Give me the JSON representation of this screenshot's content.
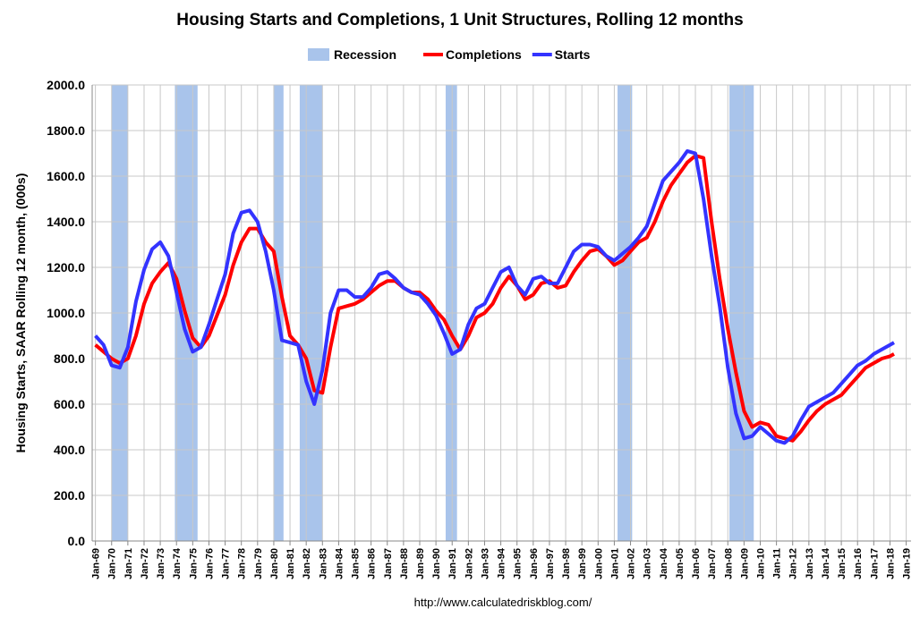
{
  "chart_data": {
    "type": "line",
    "title": "Housing Starts and Completions, 1 Unit Structures, Rolling 12 months",
    "y_label": "Housing Starts, SAAR Rolling 12 month, (000s)",
    "source": "http://www.calculatedriskblog.com/",
    "x": [
      1969,
      1969.5,
      1970,
      1970.5,
      1971,
      1971.5,
      1972,
      1972.5,
      1973,
      1973.5,
      1974,
      1974.5,
      1975,
      1975.5,
      1976,
      1976.5,
      1977,
      1977.5,
      1978,
      1978.5,
      1979,
      1979.5,
      1980,
      1980.5,
      1981,
      1981.5,
      1982,
      1982.5,
      1983,
      1983.5,
      1984,
      1984.5,
      1985,
      1985.5,
      1986,
      1986.5,
      1987,
      1987.5,
      1988,
      1988.5,
      1989,
      1989.5,
      1990,
      1990.5,
      1991,
      1991.5,
      1992,
      1992.5,
      1993,
      1993.5,
      1994,
      1994.5,
      1995,
      1995.5,
      1996,
      1996.5,
      1997,
      1997.5,
      1998,
      1998.5,
      1999,
      1999.5,
      2000,
      2000.5,
      2001,
      2001.5,
      2002,
      2002.5,
      2003,
      2003.5,
      2004,
      2004.5,
      2005,
      2005.5,
      2006,
      2006.5,
      2007,
      2007.5,
      2008,
      2008.5,
      2009,
      2009.5,
      2010,
      2010.5,
      2011,
      2011.5,
      2012,
      2012.5,
      2013,
      2013.5,
      2014,
      2014.5,
      2015,
      2015.5,
      2016,
      2016.5,
      2017,
      2017.5,
      2018,
      2018.25
    ],
    "series": [
      {
        "name": "Completions",
        "color": "#ff0000",
        "values": [
          860,
          830,
          800,
          780,
          800,
          900,
          1040,
          1130,
          1180,
          1220,
          1150,
          1010,
          890,
          850,
          900,
          990,
          1080,
          1210,
          1310,
          1370,
          1370,
          1310,
          1270,
          1070,
          900,
          860,
          800,
          660,
          650,
          850,
          1020,
          1030,
          1040,
          1060,
          1090,
          1120,
          1140,
          1140,
          1110,
          1090,
          1090,
          1060,
          1010,
          970,
          900,
          840,
          900,
          980,
          1000,
          1040,
          1110,
          1160,
          1120,
          1060,
          1080,
          1130,
          1140,
          1110,
          1120,
          1180,
          1230,
          1270,
          1280,
          1250,
          1210,
          1230,
          1270,
          1310,
          1330,
          1400,
          1490,
          1560,
          1610,
          1660,
          1690,
          1680,
          1400,
          1150,
          930,
          740,
          570,
          500,
          520,
          510,
          460,
          450,
          440,
          480,
          530,
          570,
          600,
          620,
          640,
          680,
          720,
          760,
          780,
          800,
          810,
          820
        ]
      },
      {
        "name": "Starts",
        "color": "#3333ff",
        "values": [
          900,
          860,
          770,
          760,
          850,
          1050,
          1190,
          1280,
          1310,
          1250,
          1090,
          930,
          830,
          850,
          950,
          1060,
          1170,
          1350,
          1440,
          1450,
          1400,
          1270,
          1100,
          880,
          870,
          860,
          700,
          600,
          750,
          1000,
          1100,
          1100,
          1070,
          1070,
          1110,
          1170,
          1180,
          1150,
          1110,
          1090,
          1080,
          1040,
          990,
          910,
          820,
          840,
          950,
          1020,
          1040,
          1110,
          1180,
          1200,
          1120,
          1080,
          1150,
          1160,
          1130,
          1130,
          1200,
          1270,
          1300,
          1300,
          1290,
          1250,
          1230,
          1260,
          1290,
          1330,
          1380,
          1480,
          1580,
          1620,
          1660,
          1710,
          1700,
          1500,
          1250,
          1030,
          760,
          560,
          450,
          460,
          500,
          470,
          440,
          430,
          460,
          530,
          590,
          610,
          630,
          650,
          690,
          730,
          770,
          790,
          820,
          840,
          860,
          870
        ]
      }
    ],
    "recessions": {
      "name": "Recession",
      "color": "#a9c4eb",
      "periods": [
        [
          1970.0,
          1971.0
        ],
        [
          1973.9,
          1975.3
        ],
        [
          1980.0,
          1980.6
        ],
        [
          1981.6,
          1983.0
        ],
        [
          1990.6,
          1991.3
        ],
        [
          2001.2,
          2002.1
        ],
        [
          2008.1,
          2009.6
        ]
      ]
    },
    "xlim": [
      1968.8,
      2019.3
    ],
    "xticks": [
      {
        "value": 1969,
        "label": "Jan-69"
      },
      {
        "value": 1970,
        "label": "Jan-70"
      },
      {
        "value": 1971,
        "label": "Jan-71"
      },
      {
        "value": 1972,
        "label": "Jan-72"
      },
      {
        "value": 1973,
        "label": "Jan-73"
      },
      {
        "value": 1974,
        "label": "Jan-74"
      },
      {
        "value": 1975,
        "label": "Jan-75"
      },
      {
        "value": 1976,
        "label": "Jan-76"
      },
      {
        "value": 1977,
        "label": "Jan-77"
      },
      {
        "value": 1978,
        "label": "Jan-78"
      },
      {
        "value": 1979,
        "label": "Jan-79"
      },
      {
        "value": 1980,
        "label": "Jan-80"
      },
      {
        "value": 1981,
        "label": "Jan-81"
      },
      {
        "value": 1982,
        "label": "Jan-82"
      },
      {
        "value": 1983,
        "label": "Jan-83"
      },
      {
        "value": 1984,
        "label": "Jan-84"
      },
      {
        "value": 1985,
        "label": "Jan-85"
      },
      {
        "value": 1986,
        "label": "Jan-86"
      },
      {
        "value": 1987,
        "label": "Jan-87"
      },
      {
        "value": 1988,
        "label": "Jan-88"
      },
      {
        "value": 1989,
        "label": "Jan-89"
      },
      {
        "value": 1990,
        "label": "Jan-90"
      },
      {
        "value": 1991,
        "label": "Jan-91"
      },
      {
        "value": 1992,
        "label": "Jan-92"
      },
      {
        "value": 1993,
        "label": "Jan-93"
      },
      {
        "value": 1994,
        "label": "Jan-94"
      },
      {
        "value": 1995,
        "label": "Jan-95"
      },
      {
        "value": 1996,
        "label": "Jan-96"
      },
      {
        "value": 1997,
        "label": "Jan-97"
      },
      {
        "value": 1998,
        "label": "Jan-98"
      },
      {
        "value": 1999,
        "label": "Jan-99"
      },
      {
        "value": 2000,
        "label": "Jan-00"
      },
      {
        "value": 2001,
        "label": "Jan-01"
      },
      {
        "value": 2002,
        "label": "Jan-02"
      },
      {
        "value": 2003,
        "label": "Jan-03"
      },
      {
        "value": 2004,
        "label": "Jan-04"
      },
      {
        "value": 2005,
        "label": "Jan-05"
      },
      {
        "value": 2006,
        "label": "Jan-06"
      },
      {
        "value": 2007,
        "label": "Jan-07"
      },
      {
        "value": 2008,
        "label": "Jan-08"
      },
      {
        "value": 2009,
        "label": "Jan-09"
      },
      {
        "value": 2010,
        "label": "Jan-10"
      },
      {
        "value": 2011,
        "label": "Jan-11"
      },
      {
        "value": 2012,
        "label": "Jan-12"
      },
      {
        "value": 2013,
        "label": "Jan-13"
      },
      {
        "value": 2014,
        "label": "Jan-14"
      },
      {
        "value": 2015,
        "label": "Jan-15"
      },
      {
        "value": 2016,
        "label": "Jan-16"
      },
      {
        "value": 2017,
        "label": "Jan-17"
      },
      {
        "value": 2018,
        "label": "Jan-18"
      },
      {
        "value": 2019,
        "label": "Jan-19"
      }
    ],
    "ylim": [
      0,
      2000
    ],
    "yticks": [
      {
        "value": 0,
        "label": "0.0"
      },
      {
        "value": 200,
        "label": "200.0"
      },
      {
        "value": 400,
        "label": "400.0"
      },
      {
        "value": 600,
        "label": "600.0"
      },
      {
        "value": 800,
        "label": "800.0"
      },
      {
        "value": 1000,
        "label": "1000.0"
      },
      {
        "value": 1200,
        "label": "1200.0"
      },
      {
        "value": 1400,
        "label": "1400.0"
      },
      {
        "value": 1600,
        "label": "1600.0"
      },
      {
        "value": 1800,
        "label": "1800.0"
      },
      {
        "value": 2000,
        "label": "2000.0"
      }
    ],
    "grid": true
  }
}
